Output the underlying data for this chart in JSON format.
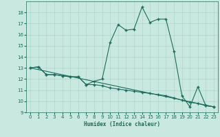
{
  "title": "",
  "xlabel": "Humidex (Indice chaleur)",
  "bg_color": "#c8e8e0",
  "line_color": "#1a6b5a",
  "grid_color": "#b0d4cc",
  "xlim": [
    -0.5,
    23.5
  ],
  "ylim": [
    9,
    19
  ],
  "yticks": [
    9,
    10,
    11,
    12,
    13,
    14,
    15,
    16,
    17,
    18
  ],
  "xticks": [
    0,
    1,
    2,
    3,
    4,
    5,
    6,
    7,
    8,
    9,
    10,
    11,
    12,
    13,
    14,
    15,
    16,
    17,
    18,
    19,
    20,
    21,
    22,
    23
  ],
  "series1_x": [
    0,
    1,
    2,
    3,
    4,
    5,
    6,
    7,
    8,
    9,
    10,
    11,
    12,
    13,
    14,
    15,
    16,
    17,
    18,
    19,
    20,
    21,
    22,
    23
  ],
  "series1_y": [
    13.0,
    13.1,
    12.4,
    12.4,
    12.3,
    12.2,
    12.2,
    11.5,
    11.8,
    12.0,
    15.3,
    16.9,
    16.4,
    16.5,
    18.5,
    17.1,
    17.4,
    17.4,
    14.5,
    10.5,
    9.5,
    11.3,
    9.6,
    9.5
  ],
  "series2_x": [
    0,
    1,
    2,
    3,
    4,
    5,
    6,
    7,
    8,
    9,
    10,
    11,
    12,
    13,
    14,
    15,
    16,
    17,
    18,
    19,
    20,
    21,
    22,
    23
  ],
  "series2_y": [
    13.0,
    13.1,
    12.4,
    12.4,
    12.3,
    12.2,
    12.2,
    11.5,
    11.5,
    11.4,
    11.2,
    11.1,
    11.0,
    10.9,
    10.8,
    10.7,
    10.6,
    10.5,
    10.3,
    10.1,
    9.9,
    9.8,
    9.6,
    9.5
  ],
  "series3_x": [
    0,
    23
  ],
  "series3_y": [
    13.0,
    9.5
  ]
}
